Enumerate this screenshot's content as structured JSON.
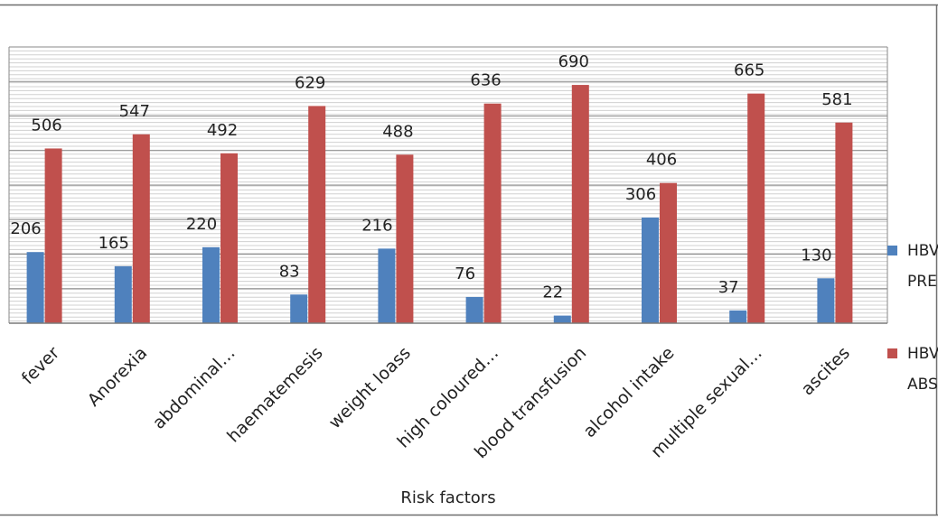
{
  "chart_data": {
    "type": "bar",
    "categories": [
      "fever",
      "Anorexia",
      "abdominal…",
      "haematemesis",
      "weight loass",
      "high coloured…",
      "blood transfusion",
      "alcohol intake",
      "multiple sexual…",
      "ascites"
    ],
    "series": [
      {
        "name": "HBV PRESENT",
        "values": [
          206,
          165,
          220,
          83,
          216,
          76,
          22,
          306,
          37,
          130
        ],
        "color": "#4f81bd"
      },
      {
        "name": "HBV ABSENT",
        "values": [
          506,
          547,
          492,
          629,
          488,
          636,
          690,
          406,
          665,
          581
        ],
        "color": "#c0504d"
      }
    ],
    "legend_text": [
      {
        "line1": "HBV",
        "line2": "PRE"
      },
      {
        "line1": "HBV",
        "line2": "ABS"
      }
    ],
    "title": "",
    "xlabel": "Risk factors",
    "ylabel": "",
    "ylim": [
      0,
      800
    ],
    "grid": true,
    "legend_position": "right"
  }
}
